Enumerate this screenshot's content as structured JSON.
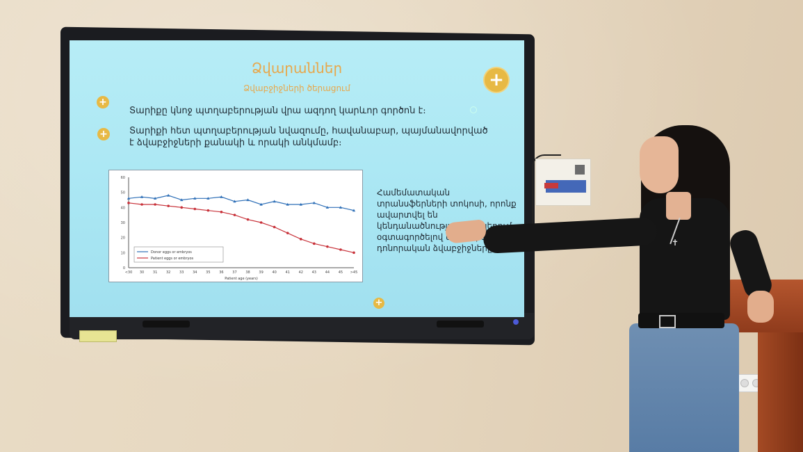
{
  "slide": {
    "title": "Ձվարաններ",
    "subtitle": "Ձվաբջիջների ծերացում",
    "bullets": [
      "Տարիքը կնոջ պտղաբերության վրա ազդող կարևոր գործոն է։",
      "Տարիքի հետ պտղաբերության նվազումը, հավանաբար, պայմանավորված է ձվաբջիջների քանակի և որակի անկմամբ։"
    ],
    "side_text": "Համեմատական տրանսֆերների տոկոսի, որոնք ավարտվել են կենդանածնությամբ ցիկլերում, օգտագործելով սեփական և դոնորական ձվաբջիջները։"
  },
  "chart_data": {
    "type": "line",
    "x": [
      "<30",
      "30",
      "31",
      "32",
      "33",
      "34",
      "35",
      "36",
      "37",
      "38",
      "39",
      "40",
      "41",
      "42",
      "43",
      "44",
      "45",
      ">45"
    ],
    "series": [
      {
        "name": "Donor eggs or embryos",
        "color": "#2e6fb7",
        "values": [
          46,
          47,
          46,
          48,
          45,
          46,
          46,
          47,
          44,
          45,
          42,
          44,
          42,
          42,
          43,
          40,
          40,
          38
        ]
      },
      {
        "name": "Patient eggs or embryos",
        "color": "#c8323a",
        "values": [
          43,
          42,
          42,
          41,
          40,
          39,
          38,
          37,
          35,
          32,
          30,
          27,
          23,
          19,
          16,
          14,
          12,
          10
        ]
      }
    ],
    "xlabel": "Patient age (years)",
    "ylabel": "",
    "ylim": [
      0,
      60
    ],
    "yticks": [
      0,
      10,
      20,
      30,
      40,
      50,
      60
    ],
    "legend": "bottom-left"
  },
  "colors": {
    "accent": "#e8a74a",
    "screen": "#aee8f4"
  },
  "icons": [
    "plus-icon"
  ]
}
